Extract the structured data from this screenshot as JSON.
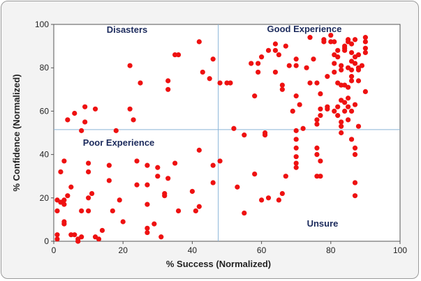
{
  "chart_data": {
    "type": "scatter",
    "title": "",
    "xlabel": "% Success (Normalized)",
    "ylabel": "% Confidence (Normalized)",
    "xlim": [
      0,
      100
    ],
    "ylim": [
      0,
      100
    ],
    "x_ticks": [
      "0",
      "20",
      "40",
      "60",
      "80",
      "100"
    ],
    "y_ticks": [
      "0",
      "20",
      "40",
      "60",
      "80",
      "100"
    ],
    "reference_lines": {
      "x": 47.5,
      "y": 51.5
    },
    "grid": false,
    "legend": "none",
    "colors": {
      "points": "#ee1111",
      "reference": "#8ab4d8",
      "frame": "#9a9a9a",
      "panel": "#ffffff",
      "background": "#f3f3f3",
      "quadrant_text": "#1b2a5c"
    },
    "annotations": {
      "top_left": "Disasters",
      "top_right": "Good Experience",
      "bottom_left": "Poor Experience",
      "bottom_right": "Unsure"
    },
    "points": [
      [
        1,
        3
      ],
      [
        1,
        1
      ],
      [
        1,
        14
      ],
      [
        1,
        19
      ],
      [
        2,
        18
      ],
      [
        2,
        32
      ],
      [
        3,
        17
      ],
      [
        3,
        19
      ],
      [
        3,
        37
      ],
      [
        3,
        9
      ],
      [
        3,
        8
      ],
      [
        4,
        21
      ],
      [
        4,
        56
      ],
      [
        5,
        25
      ],
      [
        5,
        3
      ],
      [
        6,
        59
      ],
      [
        6,
        3
      ],
      [
        7,
        1
      ],
      [
        7,
        0
      ],
      [
        7,
        0
      ],
      [
        8,
        51
      ],
      [
        8,
        2
      ],
      [
        8,
        14
      ],
      [
        9,
        55
      ],
      [
        9,
        62
      ],
      [
        10,
        14
      ],
      [
        10,
        36
      ],
      [
        10,
        32
      ],
      [
        10,
        20
      ],
      [
        11,
        22
      ],
      [
        12,
        61
      ],
      [
        12,
        2
      ],
      [
        13,
        1
      ],
      [
        14,
        5
      ],
      [
        16,
        35
      ],
      [
        16,
        28
      ],
      [
        17,
        14
      ],
      [
        18,
        51
      ],
      [
        19,
        19
      ],
      [
        20,
        9
      ],
      [
        22,
        81
      ],
      [
        22,
        61
      ],
      [
        23,
        56
      ],
      [
        24,
        37
      ],
      [
        24,
        26
      ],
      [
        25,
        73
      ],
      [
        27,
        35
      ],
      [
        27,
        26
      ],
      [
        27,
        17
      ],
      [
        27,
        6
      ],
      [
        27,
        4
      ],
      [
        29,
        8
      ],
      [
        30,
        34
      ],
      [
        30,
        30
      ],
      [
        31,
        2
      ],
      [
        32,
        22
      ],
      [
        32,
        21
      ],
      [
        33,
        74
      ],
      [
        33,
        70
      ],
      [
        33,
        29
      ],
      [
        35,
        86
      ],
      [
        35,
        36
      ],
      [
        36,
        14
      ],
      [
        36,
        86
      ],
      [
        40,
        23
      ],
      [
        41,
        14
      ],
      [
        42,
        92
      ],
      [
        42,
        42
      ],
      [
        42,
        16
      ],
      [
        43,
        78
      ],
      [
        45,
        75
      ],
      [
        46,
        84
      ],
      [
        46,
        35
      ],
      [
        46,
        27
      ],
      [
        48,
        73
      ],
      [
        48,
        37
      ],
      [
        50,
        73
      ],
      [
        51,
        73
      ],
      [
        52,
        52
      ],
      [
        53,
        25
      ],
      [
        55,
        49
      ],
      [
        55,
        13
      ],
      [
        57,
        82
      ],
      [
        58,
        67
      ],
      [
        58,
        31
      ],
      [
        59,
        82
      ],
      [
        59,
        78
      ],
      [
        60,
        85
      ],
      [
        60,
        19
      ],
      [
        61,
        49
      ],
      [
        61,
        50
      ],
      [
        62,
        88
      ],
      [
        62,
        20
      ],
      [
        64,
        78
      ],
      [
        64,
        88
      ],
      [
        64,
        91
      ],
      [
        65,
        86
      ],
      [
        65,
        19
      ],
      [
        66,
        22
      ],
      [
        66,
        70
      ],
      [
        66,
        72
      ],
      [
        67,
        30
      ],
      [
        67,
        90
      ],
      [
        68,
        81
      ],
      [
        69,
        60
      ],
      [
        70,
        34
      ],
      [
        70,
        36
      ],
      [
        70,
        43
      ],
      [
        70,
        51
      ],
      [
        70,
        47
      ],
      [
        70,
        39
      ],
      [
        70,
        81
      ],
      [
        70,
        84
      ],
      [
        70,
        67
      ],
      [
        71,
        63
      ],
      [
        72,
        52
      ],
      [
        73,
        80
      ],
      [
        74,
        94
      ],
      [
        74,
        73
      ],
      [
        75,
        84
      ],
      [
        76,
        43
      ],
      [
        76,
        54
      ],
      [
        76,
        56
      ],
      [
        76,
        73
      ],
      [
        76,
        40
      ],
      [
        76,
        30
      ],
      [
        77,
        37
      ],
      [
        77,
        58
      ],
      [
        77,
        61
      ],
      [
        77,
        68
      ],
      [
        77,
        30
      ],
      [
        78,
        92
      ],
      [
        78,
        93
      ],
      [
        79,
        76
      ],
      [
        79,
        62
      ],
      [
        79,
        61
      ],
      [
        80,
        95
      ],
      [
        80,
        92
      ],
      [
        81,
        60
      ],
      [
        81,
        86
      ],
      [
        81,
        78
      ],
      [
        81,
        92
      ],
      [
        81,
        82
      ],
      [
        82,
        88
      ],
      [
        82,
        85
      ],
      [
        82,
        58
      ],
      [
        82,
        73
      ],
      [
        82,
        62
      ],
      [
        83,
        81
      ],
      [
        83,
        79
      ],
      [
        83,
        55
      ],
      [
        83,
        50
      ],
      [
        83,
        53
      ],
      [
        83,
        72
      ],
      [
        83,
        65
      ],
      [
        84,
        88
      ],
      [
        84,
        89
      ],
      [
        84,
        72
      ],
      [
        84,
        90
      ],
      [
        84,
        64
      ],
      [
        84,
        60
      ],
      [
        85,
        71
      ],
      [
        85,
        80
      ],
      [
        85,
        56
      ],
      [
        85,
        92
      ],
      [
        85,
        93
      ],
      [
        85,
        66
      ],
      [
        85,
        62
      ],
      [
        86,
        74
      ],
      [
        86,
        76
      ],
      [
        86,
        83
      ],
      [
        86,
        60
      ],
      [
        86,
        47
      ],
      [
        86,
        79
      ],
      [
        86,
        87
      ],
      [
        86,
        91
      ],
      [
        87,
        43
      ],
      [
        87,
        40
      ],
      [
        87,
        27
      ],
      [
        87,
        21
      ],
      [
        87,
        63
      ],
      [
        87,
        93
      ],
      [
        87,
        82
      ],
      [
        87,
        85
      ],
      [
        88,
        80
      ],
      [
        88,
        79
      ],
      [
        88,
        86
      ],
      [
        88,
        74
      ],
      [
        88,
        53
      ],
      [
        89,
        81
      ],
      [
        90,
        92
      ],
      [
        90,
        94
      ],
      [
        90,
        89
      ],
      [
        90,
        69
      ],
      [
        90,
        87
      ]
    ]
  }
}
